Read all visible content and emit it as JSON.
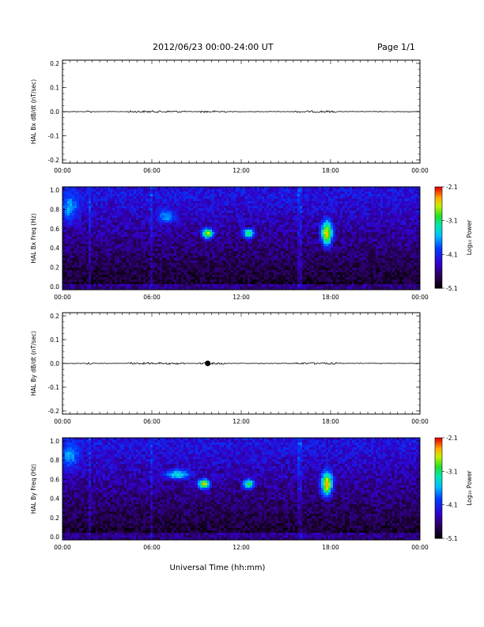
{
  "header": {
    "title": "2012/06/23  00:00-24:00 UT",
    "page": "Page 1/1"
  },
  "footer": {
    "xlabel": "Universal Time (hh:mm)"
  },
  "colorbar": {
    "label": "Log₁₀ Power",
    "ticks": [
      "-2.1",
      "-3.1",
      "-4.1",
      "-5.1"
    ],
    "range": [
      -5.1,
      -2.1
    ]
  },
  "chart_data": [
    {
      "type": "line",
      "title": "",
      "ylabel": "HAL Bx dB/dt (nT/sec)",
      "xlabel": "",
      "xlim": [
        "00:00",
        "24:00"
      ],
      "ylim": [
        -0.2,
        0.2
      ],
      "yticks": [
        "0.2",
        "0.1",
        "0.0",
        "-0.1",
        "-0.2"
      ],
      "xticks": [
        "00:00",
        "06:00",
        "12:00",
        "18:00",
        "00:00"
      ],
      "series": [
        {
          "values": [
            0.0,
            0.0,
            0.0,
            0.0,
            0.0,
            0.0,
            0.0,
            0.0,
            0.0,
            0.0,
            0.0,
            0.0,
            0.0,
            0.0,
            0.0,
            0.0,
            0.0,
            0.0,
            0.0,
            0.0,
            0.0,
            0.0,
            0.0,
            0.0,
            0.0
          ]
        }
      ]
    },
    {
      "type": "heatmap",
      "title": "",
      "ylabel": "HAL Bx Freq (Hz)",
      "xlabel": "",
      "xlim": [
        "00:00",
        "24:00"
      ],
      "ylim": [
        0.0,
        1.0
      ],
      "yticks": [
        "1.0",
        "0.8",
        "0.6",
        "0.4",
        "0.2",
        "0.0"
      ],
      "xticks": [
        "00:00",
        "06:00",
        "12:00",
        "18:00",
        "00:00"
      ],
      "value_label": "Log₁₀ Power",
      "value_range": [
        -5.1,
        -2.1
      ],
      "features": [
        {
          "time": "00:00-01:00",
          "freq": [
            0.65,
            1.0
          ],
          "log_power": -3.6
        },
        {
          "time": "06:30-07:30",
          "freq": [
            0.65,
            0.8
          ],
          "log_power": -3.6
        },
        {
          "time": "09:45",
          "freq": [
            0.5,
            0.6
          ],
          "log_power": -2.6
        },
        {
          "time": "12:30",
          "freq": [
            0.5,
            0.6
          ],
          "log_power": -3.0
        },
        {
          "time": "17:45",
          "freq": [
            0.4,
            0.7
          ],
          "log_power": -2.5
        }
      ]
    },
    {
      "type": "line",
      "title": "",
      "ylabel": "HAL By dB/dt (nT/sec)",
      "xlabel": "",
      "xlim": [
        "00:00",
        "24:00"
      ],
      "ylim": [
        -0.2,
        0.2
      ],
      "yticks": [
        "0.2",
        "0.1",
        "0.0",
        "-0.1",
        "-0.2"
      ],
      "xticks": [
        "00:00",
        "06:00",
        "12:00",
        "18:00",
        "00:00"
      ],
      "series": [
        {
          "values": [
            0.0,
            0.0,
            0.0,
            0.0,
            0.0,
            0.0,
            0.0,
            0.0,
            0.0,
            0.0,
            0.0,
            0.0,
            0.0,
            0.0,
            0.0,
            0.0,
            0.0,
            0.0,
            0.0,
            0.0,
            0.0,
            0.0,
            0.0,
            0.0,
            0.0
          ]
        }
      ]
    },
    {
      "type": "heatmap",
      "title": "",
      "ylabel": "HAL By Freq (Hz)",
      "xlabel": "Universal Time (hh:mm)",
      "xlim": [
        "00:00",
        "24:00"
      ],
      "ylim": [
        0.0,
        1.0
      ],
      "yticks": [
        "1.0",
        "0.8",
        "0.6",
        "0.4",
        "0.2",
        "0.0"
      ],
      "xticks": [
        "00:00",
        "06:00",
        "12:00",
        "18:00",
        "00:00"
      ],
      "value_label": "Log₁₀ Power",
      "value_range": [
        -5.1,
        -2.1
      ],
      "features": [
        {
          "time": "00:00-01:00",
          "freq": [
            0.7,
            1.0
          ],
          "log_power": -3.6
        },
        {
          "time": "07:00-08:30",
          "freq": [
            0.6,
            0.7
          ],
          "log_power": -3.3
        },
        {
          "time": "09:30",
          "freq": [
            0.5,
            0.6
          ],
          "log_power": -2.6
        },
        {
          "time": "12:30",
          "freq": [
            0.5,
            0.6
          ],
          "log_power": -3.0
        },
        {
          "time": "17:45",
          "freq": [
            0.4,
            0.7
          ],
          "log_power": -2.5
        }
      ]
    }
  ]
}
